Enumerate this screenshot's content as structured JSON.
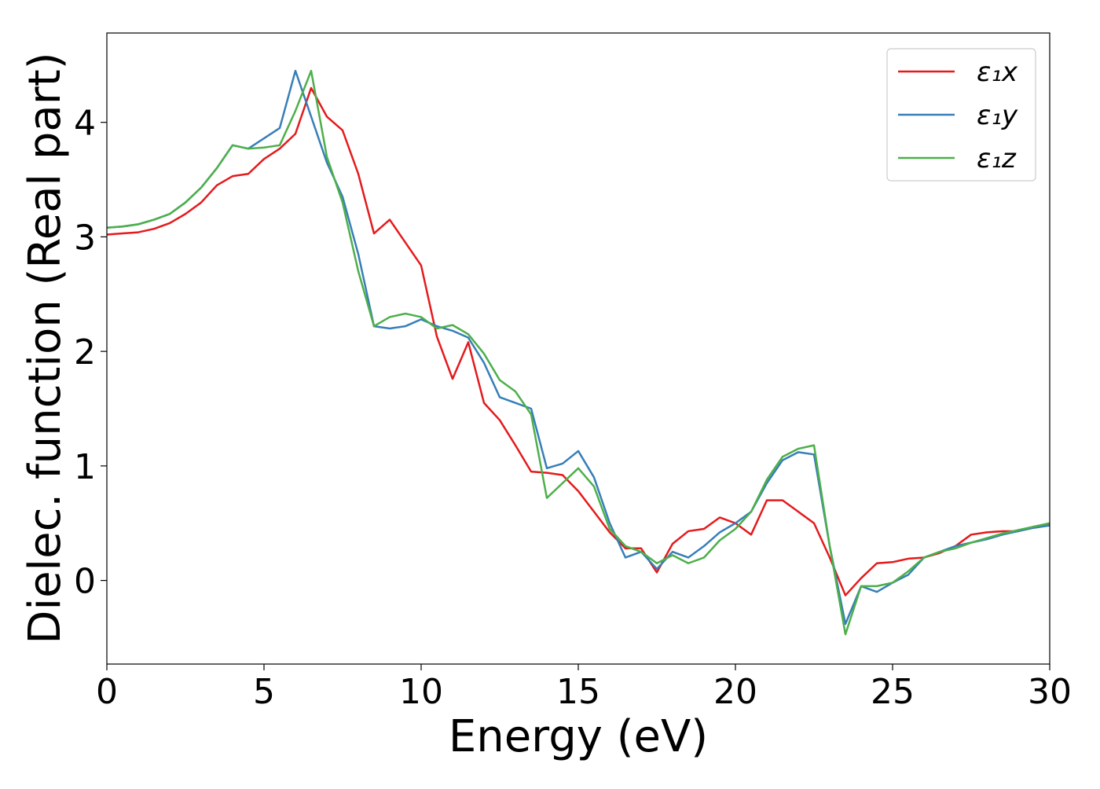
{
  "chart_data": {
    "type": "line",
    "xlabel": "Energy (eV)",
    "ylabel": "Dielec. function (Real part)",
    "xlim": [
      0,
      30
    ],
    "ylim": [
      -0.73,
      4.78
    ],
    "xticks": [
      0,
      5,
      10,
      15,
      20,
      25,
      30
    ],
    "yticks": [
      0,
      1,
      2,
      3,
      4
    ],
    "legend": "upper right",
    "x": [
      0,
      0.5,
      1,
      1.5,
      2,
      2.5,
      3,
      3.5,
      4,
      4.5,
      5,
      5.5,
      6,
      6.5,
      7,
      7.5,
      8,
      8.5,
      9,
      9.5,
      10,
      10.5,
      11,
      11.5,
      12,
      12.5,
      13,
      13.5,
      14,
      14.5,
      15,
      15.5,
      16,
      16.5,
      17,
      17.5,
      18,
      18.5,
      19,
      19.5,
      20,
      20.5,
      21,
      21.5,
      22,
      22.5,
      23,
      23.5,
      24,
      24.5,
      25,
      25.5,
      26,
      26.5,
      27,
      27.5,
      28,
      28.5,
      29,
      29.5,
      30
    ],
    "series": [
      {
        "name": "ε₁x",
        "color": "#e41a1c",
        "values": [
          3.02,
          3.03,
          3.04,
          3.07,
          3.12,
          3.2,
          3.3,
          3.45,
          3.53,
          3.55,
          3.68,
          3.77,
          3.9,
          4.3,
          4.05,
          3.93,
          3.55,
          3.03,
          3.15,
          2.95,
          2.75,
          2.13,
          1.76,
          2.08,
          1.55,
          1.4,
          1.18,
          0.95,
          0.94,
          0.92,
          0.78,
          0.6,
          0.42,
          0.28,
          0.28,
          0.07,
          0.32,
          0.43,
          0.45,
          0.55,
          0.5,
          0.4,
          0.7,
          0.7,
          0.6,
          0.5,
          0.2,
          -0.13,
          0.02,
          0.15,
          0.16,
          0.19,
          0.2,
          0.24,
          0.3,
          0.4,
          0.42,
          0.43,
          0.43,
          0.47,
          0.49
        ]
      },
      {
        "name": "ε₁y",
        "color": "#377eb8",
        "values": [
          3.08,
          3.09,
          3.11,
          3.15,
          3.2,
          3.3,
          3.43,
          3.6,
          3.8,
          3.77,
          3.86,
          3.95,
          4.45,
          4.05,
          3.65,
          3.35,
          2.85,
          2.22,
          2.2,
          2.22,
          2.28,
          2.22,
          2.18,
          2.12,
          1.9,
          1.6,
          1.55,
          1.5,
          0.98,
          1.02,
          1.13,
          0.9,
          0.5,
          0.2,
          0.25,
          0.1,
          0.25,
          0.2,
          0.3,
          0.42,
          0.5,
          0.6,
          0.85,
          1.05,
          1.12,
          1.1,
          0.3,
          -0.38,
          -0.05,
          -0.1,
          -0.02,
          0.05,
          0.2,
          0.25,
          0.3,
          0.33,
          0.36,
          0.4,
          0.43,
          0.46,
          0.48
        ]
      },
      {
        "name": "ε₁z",
        "color": "#4daf4a",
        "values": [
          3.08,
          3.09,
          3.11,
          3.15,
          3.2,
          3.3,
          3.43,
          3.6,
          3.8,
          3.77,
          3.78,
          3.8,
          4.1,
          4.45,
          3.7,
          3.3,
          2.7,
          2.22,
          2.3,
          2.33,
          2.3,
          2.2,
          2.23,
          2.15,
          1.98,
          1.75,
          1.65,
          1.45,
          0.72,
          0.85,
          0.98,
          0.82,
          0.45,
          0.3,
          0.25,
          0.15,
          0.22,
          0.15,
          0.2,
          0.35,
          0.45,
          0.6,
          0.88,
          1.08,
          1.15,
          1.18,
          0.3,
          -0.47,
          -0.05,
          -0.05,
          -0.02,
          0.08,
          0.2,
          0.25,
          0.28,
          0.33,
          0.37,
          0.41,
          0.44,
          0.47,
          0.5
        ]
      }
    ]
  }
}
